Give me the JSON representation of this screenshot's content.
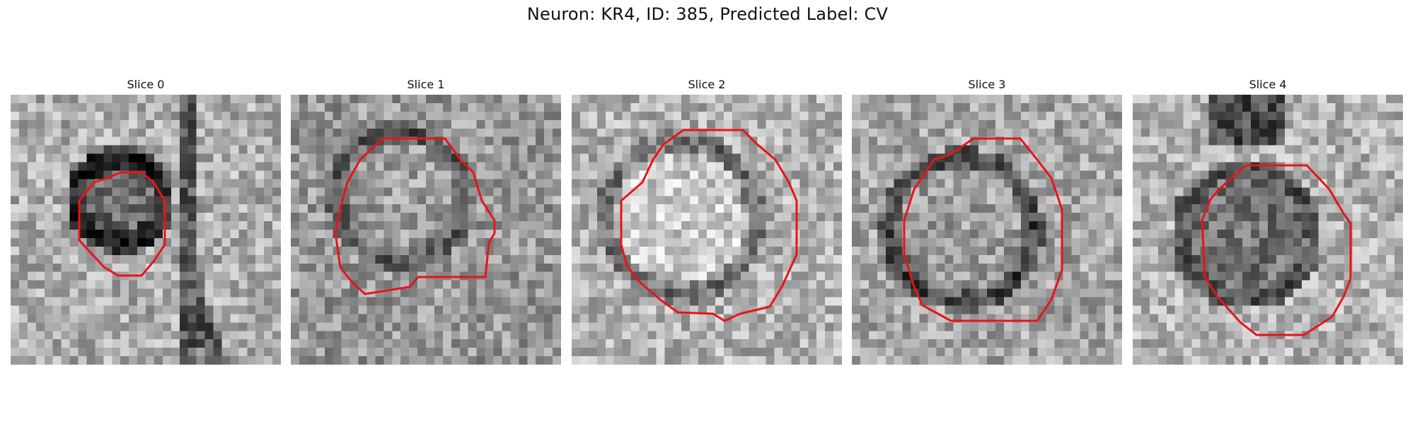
{
  "figure": {
    "title": "Neuron: KR4, ID: 385, Predicted Label: CV"
  },
  "panels": [
    {
      "title": "Slice 0"
    },
    {
      "title": "Slice 1"
    },
    {
      "title": "Slice 2"
    },
    {
      "title": "Slice 3"
    },
    {
      "title": "Slice 4"
    }
  ],
  "colors": {
    "contour": "#e8141a",
    "background": "#ffffff"
  }
}
